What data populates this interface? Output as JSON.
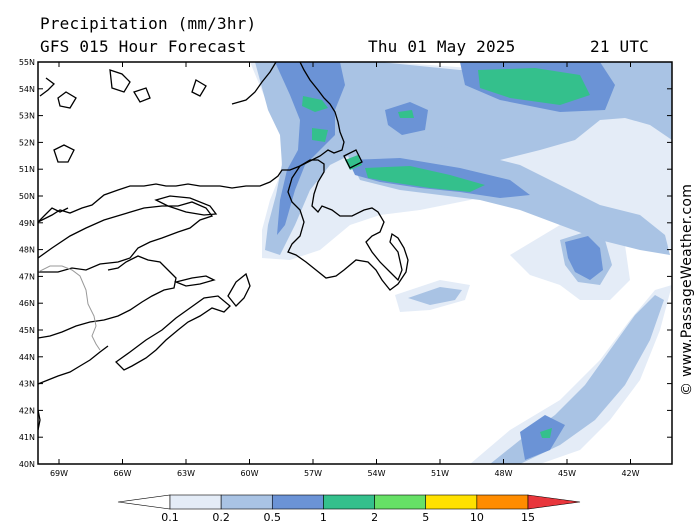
{
  "header": {
    "title": "Precipitation (mm/3hr)",
    "model": "GFS 015 Hour Forecast",
    "date": "Thu 01 May 2025",
    "time": "21 UTC"
  },
  "credit": "© www.PassageWeather.com",
  "map": {
    "lat_labels": [
      "55N",
      "54N",
      "53N",
      "52N",
      "51N",
      "50N",
      "49N",
      "48N",
      "47N",
      "46N",
      "45N",
      "44N",
      "43N",
      "42N",
      "41N",
      "40N"
    ],
    "lon_labels": [
      "69W",
      "66W",
      "63W",
      "60W",
      "57W",
      "54W",
      "51W",
      "48W",
      "45W",
      "42W"
    ]
  },
  "legend": {
    "values": [
      "0.1",
      "0.2",
      "0.5",
      "1",
      "2",
      "5",
      "10",
      "15"
    ],
    "colors": [
      "#ffffff",
      "#e4ecf7",
      "#a9c3e4",
      "#6b93d6",
      "#34c08c",
      "#66e066",
      "#ffe100",
      "#ff8c00",
      "#e8363c"
    ]
  }
}
